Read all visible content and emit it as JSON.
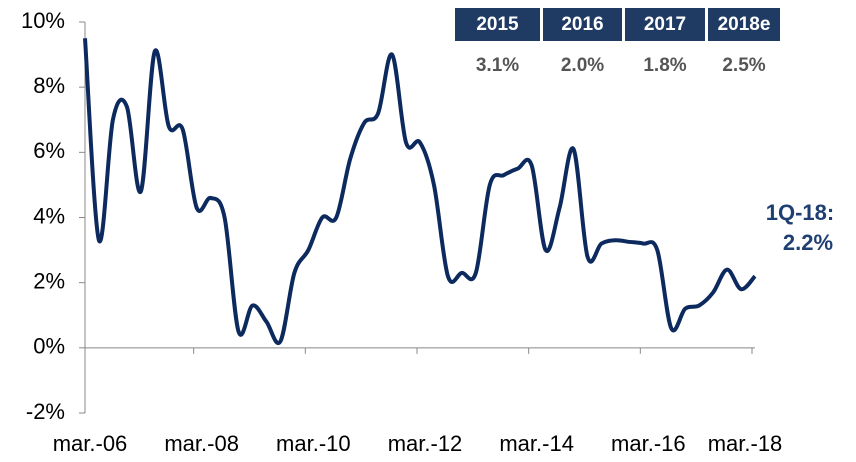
{
  "chart_data": {
    "type": "line",
    "categories": [
      "mar.-06",
      null,
      null,
      null,
      null,
      null,
      null,
      null,
      "mar.-08",
      null,
      null,
      null,
      null,
      null,
      null,
      null,
      "mar.-10",
      null,
      null,
      null,
      null,
      null,
      null,
      null,
      "mar.-12",
      null,
      null,
      null,
      null,
      null,
      null,
      null,
      "mar.-14",
      null,
      null,
      null,
      null,
      null,
      null,
      null,
      "mar.-16",
      null,
      null,
      null,
      null,
      null,
      null,
      null,
      "mar.-18"
    ],
    "series": [
      {
        "color": "#0d2a5e",
        "values": [
          9.5,
          3.3,
          7.0,
          7.4,
          4.8,
          9.1,
          6.8,
          6.7,
          4.3,
          4.6,
          4.0,
          0.5,
          1.3,
          0.8,
          0.2,
          2.3,
          3.0,
          4.0,
          4.0,
          5.8,
          6.9,
          7.2,
          9.0,
          6.3,
          6.3,
          5.0,
          2.2,
          2.3,
          2.3,
          5.0,
          5.3,
          5.5,
          5.6,
          3.0,
          4.3,
          6.1,
          2.8,
          3.2,
          3.3,
          3.25,
          3.2,
          3.0,
          0.6,
          1.2,
          1.3,
          1.7,
          2.4,
          1.8,
          2.2
        ]
      }
    ],
    "ylim": [
      -2,
      10
    ],
    "yticks": [
      {
        "value": -2,
        "label": "-2%"
      },
      {
        "value": 0,
        "label": "0%"
      },
      {
        "value": 2,
        "label": "2%"
      },
      {
        "value": 4,
        "label": "4%"
      },
      {
        "value": 6,
        "label": "6%"
      },
      {
        "value": 8,
        "label": "8%"
      },
      {
        "value": 10,
        "label": "10%"
      }
    ],
    "annotation": [
      "1Q-18:",
      "2.2%"
    ],
    "table": {
      "headers": [
        "2015",
        "2016",
        "2017",
        "2018e"
      ],
      "cells": [
        "3.1%",
        "2.0%",
        "1.8%",
        "2.5%"
      ]
    }
  }
}
